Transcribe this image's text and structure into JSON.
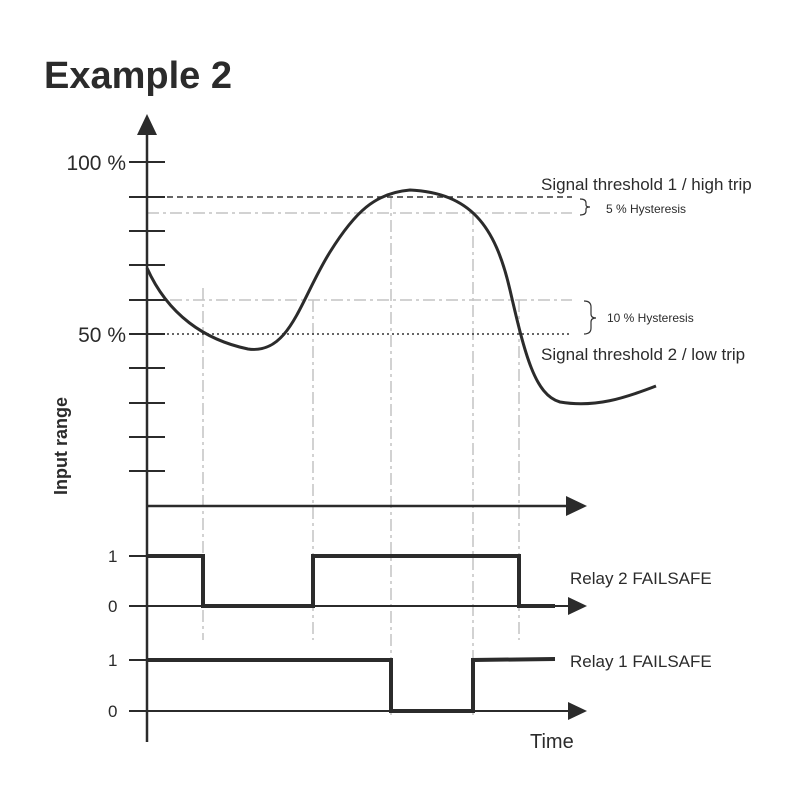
{
  "title": "Example 2",
  "input_chart": {
    "y_axis_title": "Input range",
    "y_ticks": {
      "top": "100 %",
      "mid": "50 %"
    },
    "thresholds": {
      "high_label": "Signal threshold 1 / high trip",
      "high_hysteresis": "5 % Hysteresis",
      "low_label": "Signal threshold 2 / low trip",
      "low_hysteresis": "10 % Hysteresis"
    }
  },
  "relay2": {
    "label": "Relay 2 FAILSAFE",
    "high": "1",
    "low": "0"
  },
  "relay1": {
    "label": "Relay 1 FAILSAFE",
    "high": "1",
    "low": "0"
  },
  "x_axis_title": "Time",
  "colors": {
    "ink": "#2b2b2b",
    "guide": "#c4c4c4",
    "threshold_dash": "#333333"
  }
}
